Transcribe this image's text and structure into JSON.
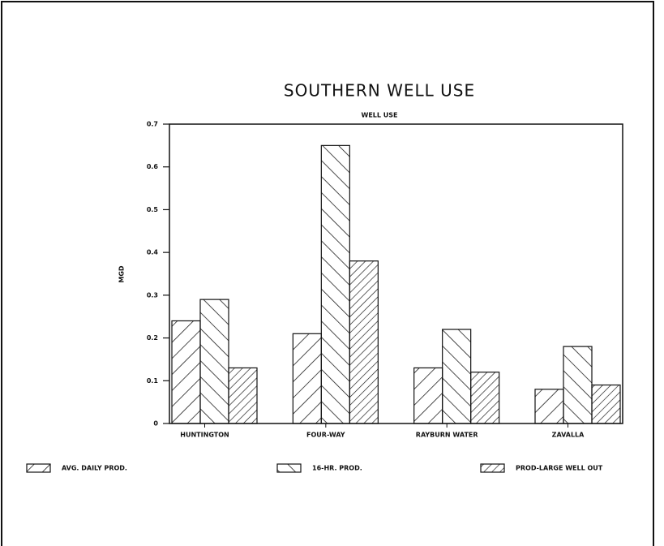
{
  "chart_data": {
    "type": "bar",
    "title": "SOUTHERN WELL USE",
    "subtitle": "WELL USE",
    "ylabel": "MGD",
    "categories": [
      "HUNTINGTON",
      "FOUR-WAY",
      "RAYBURN WATER",
      "ZAVALLA"
    ],
    "series": [
      {
        "name": "AVG. DAILY PROD.",
        "color": "#111111",
        "values": [
          0.24,
          0.21,
          0.13,
          0.08
        ]
      },
      {
        "name": "16-HR. PROD.",
        "color": "#111111",
        "values": [
          0.29,
          0.65,
          0.22,
          0.18
        ]
      },
      {
        "name": "PROD-LARGE WELL OUT",
        "color": "#111111",
        "values": [
          0.13,
          0.38,
          0.12,
          0.09
        ]
      }
    ],
    "ylim": [
      0,
      0.7
    ],
    "yticks": [
      0,
      0.1,
      0.2,
      0.3,
      0.4,
      0.5,
      0.6,
      0.7
    ],
    "grid": false,
    "legend": "bottom"
  }
}
